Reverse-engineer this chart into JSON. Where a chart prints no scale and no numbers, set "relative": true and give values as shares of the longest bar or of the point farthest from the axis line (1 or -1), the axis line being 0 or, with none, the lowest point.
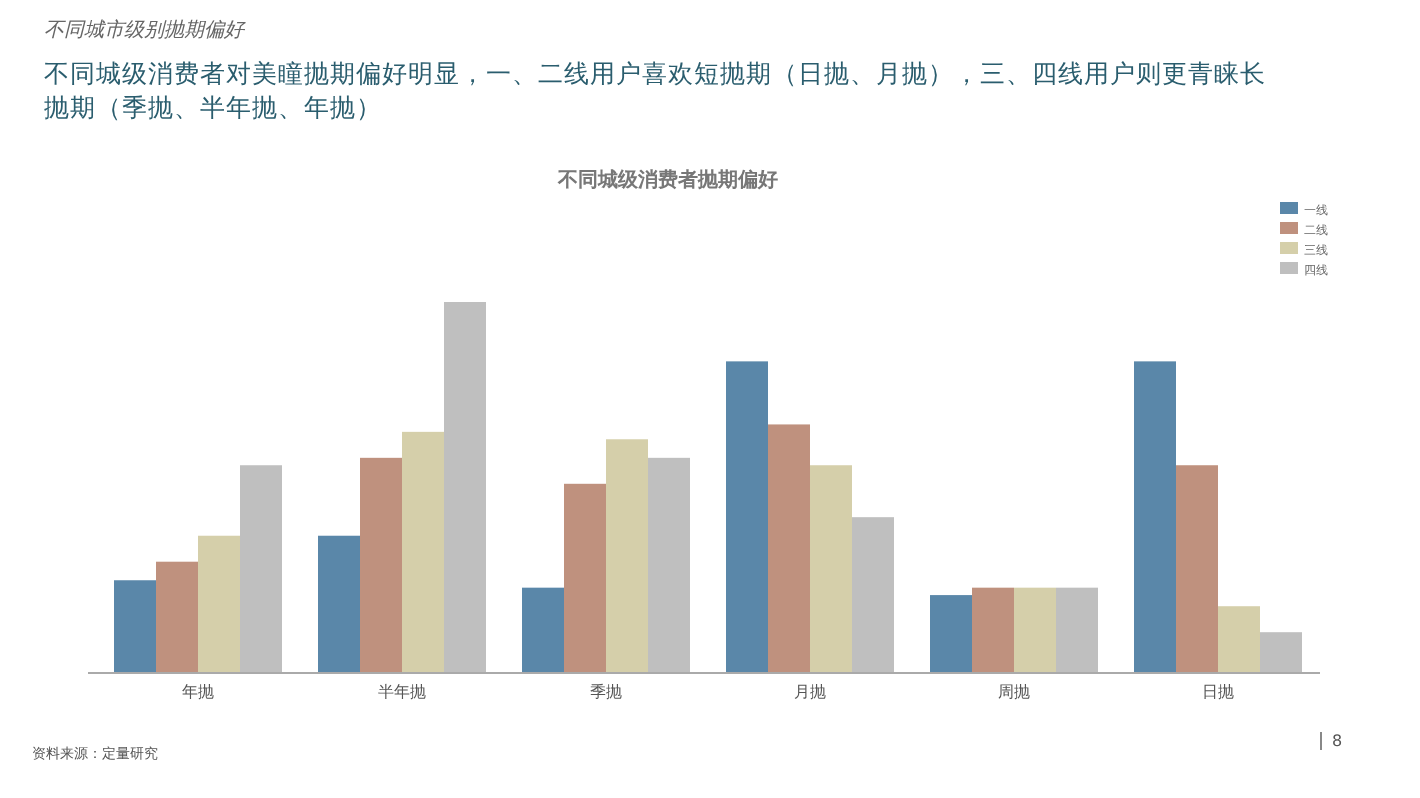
{
  "chart_data": {
    "type": "bar",
    "title": "不同城级消费者抛期偏好",
    "subtitle": "不同城级消费者对美瞳抛期偏好明显，一、二线用户喜欢短抛期（日抛、月抛），三、四线用户则更青睐长抛期（季抛、半年抛、年抛）",
    "annotations": [
      "不同城市级别抛期偏好",
      "资料来源：定量研究",
      "8"
    ],
    "categories": [
      "年抛",
      "半年抛",
      "季抛",
      "月抛",
      "周抛",
      "日抛"
    ],
    "relative": true,
    "legend": "top right",
    "series": [
      {
        "name": "一线",
        "color": "#5a87a9",
        "values": [
          0.25,
          0.37,
          0.23,
          0.84,
          0.21,
          0.84
        ]
      },
      {
        "name": "二线",
        "color": "#bf917e",
        "values": [
          0.3,
          0.58,
          0.51,
          0.67,
          0.23,
          0.56
        ]
      },
      {
        "name": "三线",
        "color": "#d5cfaa",
        "values": [
          0.37,
          0.65,
          0.63,
          0.56,
          0.23,
          0.18
        ]
      },
      {
        "name": "四线",
        "color": "#bfbfbf",
        "values": [
          0.56,
          1,
          0.58,
          0.42,
          0.23,
          0.11
        ]
      }
    ]
  }
}
